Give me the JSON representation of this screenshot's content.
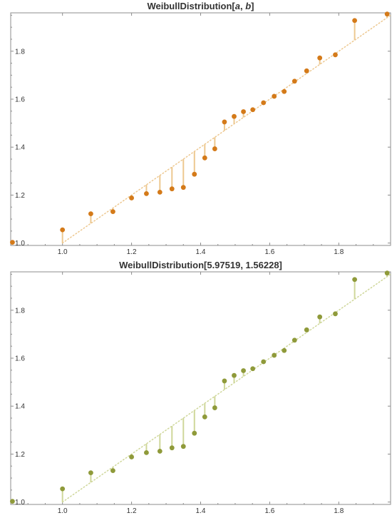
{
  "chart_data": [
    {
      "type": "scatter",
      "title": "WeibullDistribution[a, b]",
      "title_parts": [
        {
          "text": "WeibullDistribution[",
          "italic": false
        },
        {
          "text": "a",
          "italic": true
        },
        {
          "text": ", ",
          "italic": false
        },
        {
          "text": "b",
          "italic": true
        },
        {
          "text": "]",
          "italic": false
        }
      ],
      "xlabel": "",
      "ylabel": "",
      "xlim": [
        0.85,
        1.95
      ],
      "ylim": [
        0.99,
        1.96
      ],
      "xticks": [
        1.0,
        1.2,
        1.4,
        1.6,
        1.8
      ],
      "xtick_labels": [
        "1.0",
        "1.2",
        "1.4",
        "1.6",
        "1.8"
      ],
      "yticks": [
        1.0,
        1.2,
        1.4,
        1.6,
        1.8
      ],
      "ytick_labels": [
        "1.0",
        "1.2",
        "1.4",
        "1.6",
        "1.8"
      ],
      "grid": false,
      "color": "#d47a19",
      "stem_color": "#edc890",
      "reference_line": {
        "x": [
          1.0,
          1.95
        ],
        "y": [
          1.0,
          1.95
        ],
        "style": "dotted"
      },
      "series": [
        {
          "x": [
            0.855,
            1.0,
            1.082,
            1.146,
            1.2,
            1.243,
            1.282,
            1.317,
            1.35,
            1.382,
            1.412,
            1.441,
            1.469,
            1.497,
            1.524,
            1.551,
            1.582,
            1.613,
            1.642,
            1.672,
            1.707,
            1.745,
            1.79,
            1.846,
            1.94
          ],
          "y": [
            1.003,
            1.055,
            1.122,
            1.131,
            1.188,
            1.206,
            1.212,
            1.226,
            1.232,
            1.287,
            1.355,
            1.393,
            1.505,
            1.528,
            1.548,
            1.556,
            1.585,
            1.612,
            1.632,
            1.675,
            1.718,
            1.772,
            1.785,
            1.928,
            1.955
          ]
        }
      ]
    },
    {
      "type": "scatter",
      "title": "WeibullDistribution[5.97519, 1.56228]",
      "title_parts": [
        {
          "text": "WeibullDistribution[5.97519, 1.56228]",
          "italic": false
        }
      ],
      "xlabel": "",
      "ylabel": "",
      "xlim": [
        0.85,
        1.95
      ],
      "ylim": [
        0.99,
        1.96
      ],
      "xticks": [
        1.0,
        1.2,
        1.4,
        1.6,
        1.8
      ],
      "xtick_labels": [
        "1.0",
        "1.2",
        "1.4",
        "1.6",
        "1.8"
      ],
      "yticks": [
        1.0,
        1.2,
        1.4,
        1.6,
        1.8
      ],
      "ytick_labels": [
        "1.0",
        "1.2",
        "1.4",
        "1.6",
        "1.8"
      ],
      "grid": false,
      "color": "#8f9a3a",
      "stem_color": "#cfd79a",
      "reference_line": {
        "x": [
          1.0,
          1.95
        ],
        "y": [
          1.0,
          1.95
        ],
        "style": "dotted"
      },
      "series": [
        {
          "x": [
            0.855,
            1.0,
            1.082,
            1.146,
            1.2,
            1.243,
            1.282,
            1.317,
            1.35,
            1.382,
            1.412,
            1.441,
            1.469,
            1.497,
            1.524,
            1.551,
            1.582,
            1.613,
            1.642,
            1.672,
            1.707,
            1.745,
            1.79,
            1.846,
            1.94
          ],
          "y": [
            1.003,
            1.055,
            1.122,
            1.131,
            1.188,
            1.206,
            1.212,
            1.226,
            1.232,
            1.287,
            1.355,
            1.393,
            1.505,
            1.528,
            1.548,
            1.556,
            1.585,
            1.612,
            1.632,
            1.675,
            1.718,
            1.772,
            1.785,
            1.928,
            1.955
          ]
        }
      ]
    }
  ]
}
